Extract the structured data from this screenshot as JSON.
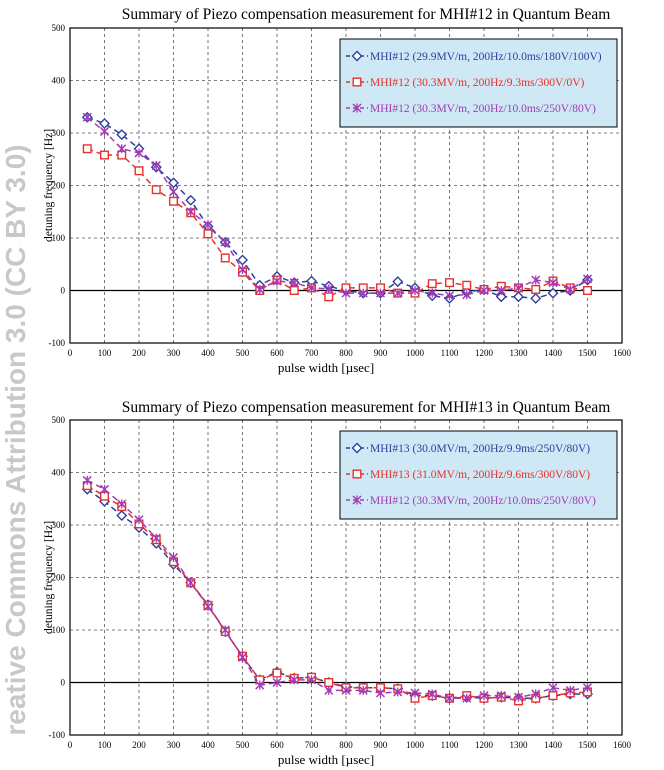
{
  "watermark": "reative Commons Attribution 3.0 (CC BY 3.0)",
  "chart_data": [
    {
      "type": "line",
      "title": "Summary of Piezo compensation measurement for MHI#12 in Quantum Beam",
      "xlabel": "pulse width [µsec]",
      "ylabel": "detuning frequency [Hz]",
      "xlim": [
        0,
        1600
      ],
      "ylim": [
        -100,
        500
      ],
      "xticks": [
        0,
        100,
        200,
        300,
        400,
        500,
        600,
        700,
        800,
        900,
        1000,
        1100,
        1200,
        1300,
        1400,
        1500,
        1600
      ],
      "yticks": [
        -100,
        0,
        100,
        200,
        300,
        400,
        500
      ],
      "grid": true,
      "legend_position": "top-right",
      "series": [
        {
          "name": "MHI#12 (29.9MV/m, 200Hz/10.0ms/180V/100V)",
          "color": "#2f3f9e",
          "marker": "diamond",
          "x": [
            50,
            100,
            150,
            200,
            250,
            300,
            350,
            400,
            450,
            500,
            550,
            600,
            650,
            700,
            750,
            800,
            850,
            900,
            950,
            1000,
            1050,
            1100,
            1150,
            1200,
            1250,
            1300,
            1350,
            1400,
            1450,
            1500
          ],
          "y": [
            330,
            318,
            297,
            270,
            235,
            205,
            172,
            122,
            92,
            58,
            10,
            27,
            15,
            18,
            8,
            0,
            -5,
            -5,
            17,
            5,
            -10,
            -15,
            -3,
            2,
            -12,
            -12,
            -15,
            -5,
            0,
            20
          ]
        },
        {
          "name": "MHI#12 (30.3MV/m, 200Hz/9.3ms/300V/0V)",
          "color": "#e8312a",
          "marker": "square",
          "x": [
            50,
            100,
            150,
            200,
            250,
            300,
            350,
            400,
            450,
            500,
            550,
            600,
            650,
            700,
            750,
            800,
            850,
            900,
            950,
            1000,
            1050,
            1100,
            1150,
            1200,
            1250,
            1300,
            1350,
            1400,
            1450,
            1500
          ],
          "y": [
            270,
            258,
            258,
            228,
            192,
            170,
            148,
            108,
            62,
            35,
            0,
            20,
            0,
            5,
            -12,
            5,
            5,
            5,
            -5,
            -5,
            13,
            15,
            10,
            2,
            8,
            5,
            2,
            18,
            5,
            0
          ]
        },
        {
          "name": "MHI#12 (30.3MV/m, 200Hz/10.0ms/250V/80V)",
          "color": "#a23ab5",
          "marker": "cross",
          "x": [
            50,
            100,
            150,
            200,
            250,
            300,
            350,
            400,
            450,
            500,
            550,
            600,
            650,
            700,
            750,
            800,
            850,
            900,
            950,
            1000,
            1050,
            1100,
            1150,
            1200,
            1250,
            1300,
            1350,
            1400,
            1450,
            1500
          ],
          "y": [
            330,
            303,
            270,
            262,
            238,
            188,
            150,
            125,
            92,
            40,
            2,
            18,
            15,
            5,
            3,
            -5,
            -5,
            -5,
            -5,
            0,
            -5,
            -10,
            -8,
            0,
            0,
            5,
            20,
            15,
            2,
            22
          ]
        }
      ]
    },
    {
      "type": "line",
      "title": "Summary of Piezo compensation measurement for MHI#13 in Quantum Beam",
      "xlabel": "pulse width [µsec]",
      "ylabel": "detuning frequency [Hz]",
      "xlim": [
        0,
        1600
      ],
      "ylim": [
        -100,
        500
      ],
      "xticks": [
        0,
        100,
        200,
        300,
        400,
        500,
        600,
        700,
        800,
        900,
        1000,
        1100,
        1200,
        1300,
        1400,
        1500,
        1600
      ],
      "yticks": [
        -100,
        0,
        100,
        200,
        300,
        400,
        500
      ],
      "grid": true,
      "legend_position": "top-right",
      "series": [
        {
          "name": "MHI#13 (30.0MV/m, 200Hz/9.9ms/250V/80V)",
          "color": "#2f3f9e",
          "marker": "diamond",
          "x": [
            50,
            100,
            150,
            200,
            250,
            300,
            350,
            400,
            450,
            500,
            550,
            600,
            650,
            700,
            750,
            800,
            850,
            900,
            950,
            1000,
            1050,
            1100,
            1150,
            1200,
            1250,
            1300,
            1350,
            1400,
            1450,
            1500
          ],
          "y": [
            368,
            345,
            318,
            295,
            265,
            225,
            190,
            148,
            97,
            50,
            5,
            20,
            8,
            10,
            0,
            -8,
            -10,
            -10,
            -12,
            -25,
            -25,
            -30,
            -28,
            -30,
            -28,
            -30,
            -30,
            -25,
            -22,
            -22
          ]
        },
        {
          "name": "MHI#13 (31.0MV/m, 200Hz/9.6ms/300V/80V)",
          "color": "#e8312a",
          "marker": "square",
          "x": [
            50,
            100,
            150,
            200,
            250,
            300,
            350,
            400,
            450,
            500,
            550,
            600,
            650,
            700,
            750,
            800,
            850,
            900,
            950,
            1000,
            1050,
            1100,
            1150,
            1200,
            1250,
            1300,
            1350,
            1400,
            1450,
            1500
          ],
          "y": [
            375,
            355,
            335,
            302,
            272,
            230,
            190,
            147,
            97,
            50,
            5,
            18,
            8,
            10,
            0,
            -10,
            -10,
            -10,
            -12,
            -30,
            -25,
            -30,
            -25,
            -30,
            -28,
            -35,
            -30,
            -25,
            -20,
            -18
          ]
        },
        {
          "name": "MHI#12 (30.3MV/m, 200Hz/10.0ms/250V/80V)",
          "color": "#a23ab5",
          "marker": "cross",
          "x": [
            50,
            100,
            150,
            200,
            250,
            300,
            350,
            400,
            450,
            500,
            550,
            600,
            650,
            700,
            750,
            800,
            850,
            900,
            950,
            1000,
            1050,
            1100,
            1150,
            1200,
            1250,
            1300,
            1350,
            1400,
            1450,
            1500
          ],
          "y": [
            385,
            368,
            340,
            310,
            275,
            238,
            190,
            145,
            100,
            48,
            -5,
            0,
            5,
            5,
            -15,
            -15,
            -15,
            -20,
            -18,
            -20,
            -22,
            -30,
            -30,
            -25,
            -25,
            -28,
            -22,
            -10,
            -15,
            -10
          ]
        }
      ]
    }
  ]
}
